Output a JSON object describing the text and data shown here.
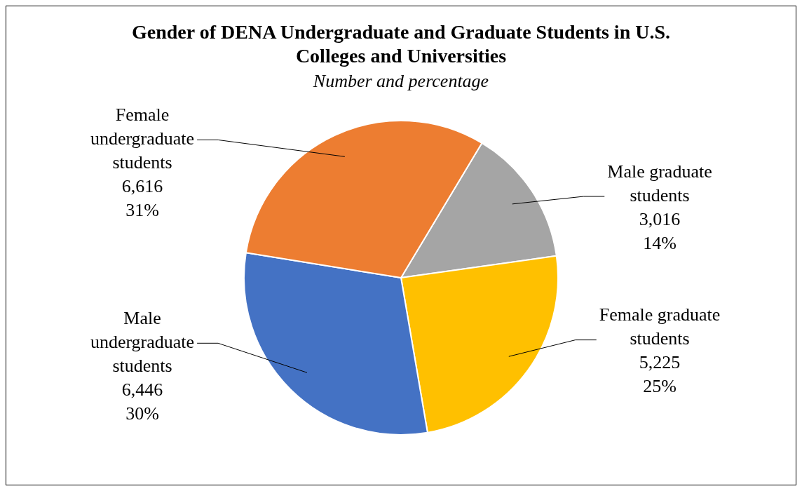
{
  "chart_data": {
    "type": "pie",
    "title": "Gender of DENA Undergraduate and Graduate Students in U.S. Colleges and Universities",
    "subtitle": "Number and percentage",
    "categories": [
      "Male graduate students",
      "Female graduate students",
      "Male undergraduate students",
      "Female undergraduate students"
    ],
    "values": [
      3016,
      5225,
      6446,
      6616
    ],
    "colors": [
      "#a5a5a5",
      "#ffc000",
      "#4472c4",
      "#ed7d31"
    ],
    "value_labels": [
      "3,016\n14%",
      "5,225\n25%",
      "6,446\n30%",
      "6,616\n31%"
    ],
    "legend": false
  }
}
